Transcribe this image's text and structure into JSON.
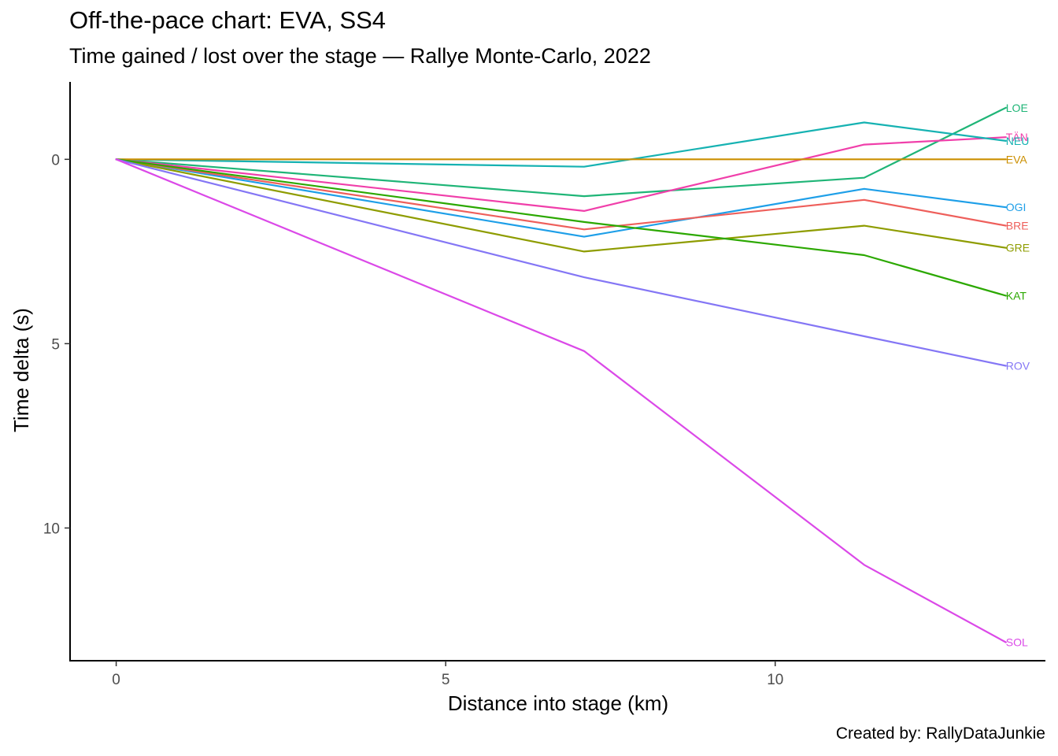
{
  "chart_data": {
    "type": "line",
    "title": "Off-the-pace chart: EVA, SS4",
    "subtitle": "Time gained / lost over the stage — Rallye Monte-Carlo, 2022",
    "caption": "Created by: RallyDataJunkie",
    "xlabel": "Distance into stage (km)",
    "ylabel": "Time delta (s)",
    "xlim": [
      -0.7,
      14.1
    ],
    "ylim": [
      13.6,
      -2.1
    ],
    "y_reversed": true,
    "xticks": [
      0,
      5,
      10
    ],
    "xtick_labels": [
      "0",
      "5",
      "10"
    ],
    "yticks": [
      0,
      5,
      10
    ],
    "ytick_labels": [
      "0",
      "5",
      "10"
    ],
    "grid": false,
    "legend": "none (direct end labels)",
    "x": [
      0,
      7.1,
      11.35,
      13.5
    ],
    "series": [
      {
        "name": "LOE",
        "color": "#1FB577",
        "values": [
          0,
          1.0,
          0.5,
          -1.4
        ]
      },
      {
        "name": "TÄN",
        "color": "#F03FAA",
        "values": [
          0,
          1.4,
          -0.4,
          -0.6
        ]
      },
      {
        "name": "NEU",
        "color": "#16B2B2",
        "values": [
          0,
          0.2,
          -1.0,
          -0.5
        ]
      },
      {
        "name": "EVA",
        "color": "#CB8F00",
        "values": [
          0,
          0,
          0,
          0
        ]
      },
      {
        "name": "OGI",
        "color": "#1E9FE8",
        "values": [
          0,
          2.1,
          0.8,
          1.3
        ]
      },
      {
        "name": "BRE",
        "color": "#EE5F5B",
        "values": [
          0,
          1.9,
          1.1,
          1.8
        ]
      },
      {
        "name": "GRE",
        "color": "#8E9C00",
        "values": [
          0,
          2.5,
          1.8,
          2.4
        ]
      },
      {
        "name": "KAT",
        "color": "#2BA800",
        "values": [
          0,
          1.7,
          2.6,
          3.7
        ]
      },
      {
        "name": "ROV",
        "color": "#8476F5",
        "values": [
          0,
          3.2,
          4.8,
          5.6
        ]
      },
      {
        "name": "SOL",
        "color": "#DB49E8",
        "values": [
          0,
          5.2,
          11.0,
          13.1
        ]
      }
    ]
  }
}
